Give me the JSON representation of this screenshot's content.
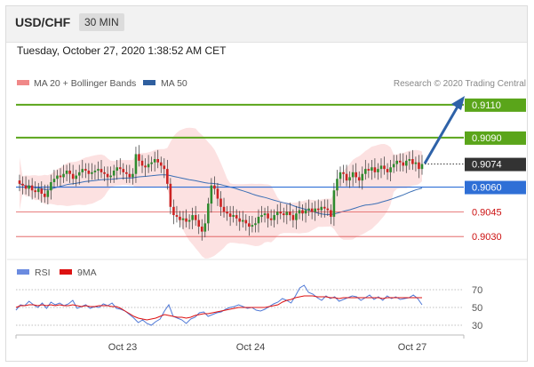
{
  "header": {
    "pair": "USD/CHF",
    "timeframe": "30 MIN"
  },
  "datetime": "Tuesday, October 27, 2020 1:38:52 AM CET",
  "legend": {
    "ma20_label": "MA 20 + Bollinger Bands",
    "ma50_label": "MA 50",
    "credit": "Research © 2020 Trading Central",
    "rsi_label": "RSI",
    "ma9_label": "9MA"
  },
  "colors": {
    "up_candle": "#2e8b2e",
    "down_candle": "#cc2222",
    "bollinger_fill": "#f9c9c9",
    "ma50": "#3b6fb5",
    "resistance": "#5aa51a",
    "support": "#2f6fd6",
    "support_red": "#e05555",
    "current": "#333333",
    "rsi": "#4f78d6",
    "ma9": "#dd1111"
  },
  "chart_data": [
    {
      "type": "candlestick",
      "title": "USD/CHF 30 MIN",
      "x_labels": [
        "Oct 23",
        "Oct 24",
        "Oct 27"
      ],
      "ylim": [
        0.9022,
        0.9118
      ],
      "price_levels": [
        {
          "label": "0.9110",
          "value": 0.911,
          "kind": "resistance"
        },
        {
          "label": "0.9090",
          "value": 0.909,
          "kind": "resistance"
        },
        {
          "label": "0.9074",
          "value": 0.9074,
          "kind": "current"
        },
        {
          "label": "0.9060",
          "value": 0.906,
          "kind": "support"
        },
        {
          "label": "0.9045",
          "value": 0.9045,
          "kind": "support"
        },
        {
          "label": "0.9030",
          "value": 0.903,
          "kind": "support"
        }
      ],
      "close": [
        0.9062,
        0.9061,
        0.9059,
        0.9061,
        0.9058,
        0.9057,
        0.9059,
        0.9056,
        0.9054,
        0.9058,
        0.9063,
        0.9065,
        0.9067,
        0.9066,
        0.9068,
        0.907,
        0.9068,
        0.9065,
        0.9067,
        0.9069,
        0.9071,
        0.907,
        0.9068,
        0.9069,
        0.907,
        0.9071,
        0.9069,
        0.9068,
        0.9066,
        0.9067,
        0.907,
        0.9072,
        0.9071,
        0.9069,
        0.9068,
        0.9066,
        0.9068,
        0.908,
        0.9076,
        0.9073,
        0.9072,
        0.9074,
        0.9075,
        0.9077,
        0.9075,
        0.9073,
        0.9071,
        0.9062,
        0.9048,
        0.9043,
        0.9042,
        0.904,
        0.9041,
        0.9039,
        0.904,
        0.9043,
        0.904,
        0.9036,
        0.9033,
        0.9038,
        0.905,
        0.9061,
        0.9059,
        0.9053,
        0.9048,
        0.9045,
        0.9044,
        0.9042,
        0.9043,
        0.9041,
        0.9039,
        0.904,
        0.9038,
        0.9036,
        0.9037,
        0.9038,
        0.9042,
        0.9043,
        0.9044,
        0.9041,
        0.904,
        0.9043,
        0.9045,
        0.9044,
        0.9043,
        0.9045,
        0.9043,
        0.904,
        0.9044,
        0.9046,
        0.9044,
        0.9046,
        0.9047,
        0.9045,
        0.9047,
        0.9046,
        0.9048,
        0.9047,
        0.9046,
        0.9042,
        0.9058,
        0.9065,
        0.9069,
        0.9068,
        0.9064,
        0.9066,
        0.9069,
        0.9066,
        0.9064,
        0.9068,
        0.9071,
        0.907,
        0.9072,
        0.9069,
        0.9071,
        0.9073,
        0.9071,
        0.9069,
        0.9072,
        0.9074,
        0.9076,
        0.9075,
        0.9073,
        0.9076,
        0.9077,
        0.9074,
        0.9075,
        0.9071,
        0.9074
      ],
      "series": [
        {
          "name": "MA 20 + Bollinger Bands",
          "kind": "band"
        },
        {
          "name": "MA 50",
          "kind": "line"
        }
      ]
    },
    {
      "type": "line",
      "title": "RSI",
      "ylim": [
        20,
        80
      ],
      "y_ticks": [
        70,
        50,
        30
      ],
      "series": [
        {
          "name": "RSI",
          "values": [
            47,
            53,
            52,
            57,
            53,
            50,
            55,
            49,
            56,
            53,
            55,
            52,
            54,
            58,
            49,
            51,
            53,
            49,
            51,
            50,
            54,
            52,
            55,
            49,
            48,
            46,
            42,
            38,
            33,
            36,
            32,
            30,
            34,
            37,
            46,
            53,
            40,
            38,
            36,
            32,
            37,
            39,
            44,
            45,
            40,
            42,
            44,
            45,
            48,
            50,
            51,
            53,
            51,
            49,
            50,
            47,
            46,
            48,
            51,
            54,
            56,
            60,
            58,
            55,
            63,
            72,
            75,
            67,
            65,
            61,
            58,
            63,
            60,
            62,
            57,
            59,
            61,
            63,
            62,
            58,
            61,
            64,
            59,
            62,
            58,
            63,
            60,
            62,
            59,
            60,
            61,
            64,
            60,
            53
          ]
        },
        {
          "name": "9MA",
          "values": [
            50,
            52,
            52,
            53,
            53,
            52,
            53,
            52,
            53,
            52,
            53,
            52,
            52,
            53,
            52,
            51,
            52,
            51,
            51,
            52,
            52,
            52,
            51,
            51,
            49,
            46,
            43,
            40,
            38,
            37,
            36,
            37,
            38,
            40,
            42,
            41,
            40,
            39,
            39,
            38,
            39,
            41,
            42,
            43,
            43,
            44,
            45,
            46,
            47,
            48,
            49,
            50,
            50,
            50,
            50,
            50,
            50,
            50,
            51,
            52,
            53,
            56,
            58,
            59,
            61,
            62,
            63,
            63,
            63,
            62,
            62,
            62,
            61,
            61,
            60,
            61,
            61,
            61,
            61,
            61,
            61,
            61,
            61,
            61,
            60,
            61,
            61,
            61,
            61,
            61,
            61,
            61,
            61,
            61
          ]
        }
      ]
    }
  ]
}
